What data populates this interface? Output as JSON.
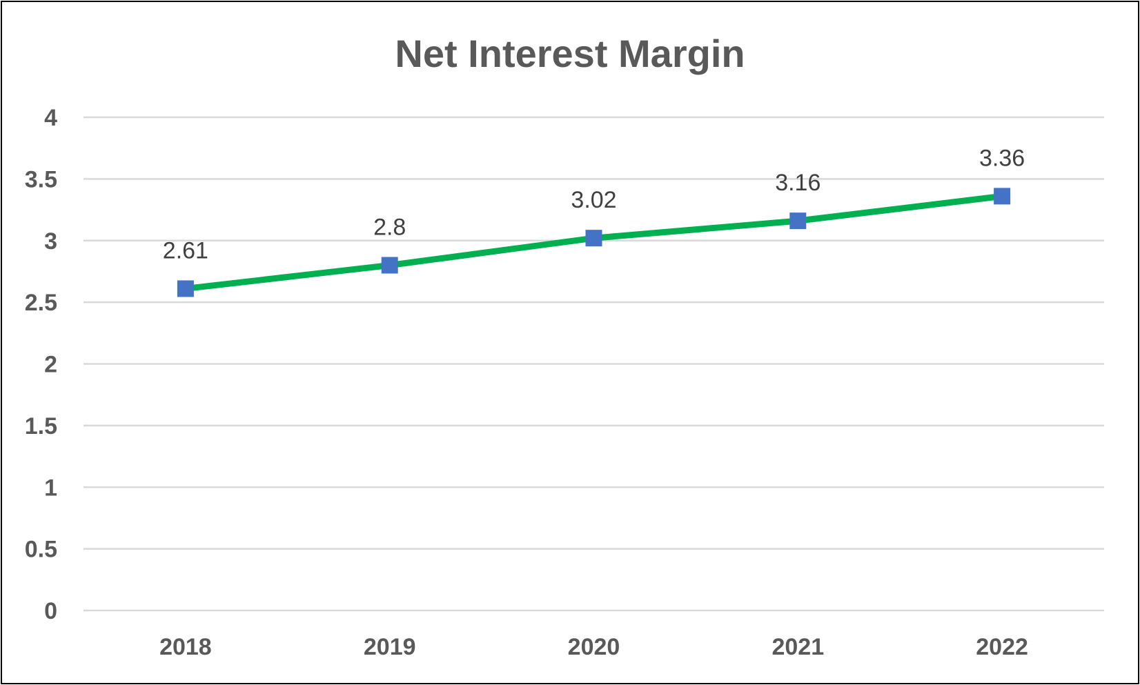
{
  "chart_data": {
    "type": "line",
    "title": "Net Interest Margin",
    "xlabel": "",
    "ylabel": "",
    "categories": [
      "2018",
      "2019",
      "2020",
      "2021",
      "2022"
    ],
    "series": [
      {
        "values": [
          2.61,
          2.8,
          3.02,
          3.16,
          3.36
        ],
        "data_labels": [
          "2.61",
          "2.8",
          "3.02",
          "3.16",
          "3.36"
        ],
        "line_color": "#00b050",
        "marker_color": "#4472c4",
        "marker": "square"
      }
    ],
    "ylim": [
      0,
      4
    ],
    "yticks": [
      0,
      0.5,
      1,
      1.5,
      2,
      2.5,
      3,
      3.5,
      4
    ],
    "ytick_labels": [
      "0",
      "0.5",
      "1",
      "1.5",
      "2",
      "2.5",
      "3",
      "3.5",
      "4"
    ],
    "grid": true,
    "legend": "none"
  }
}
